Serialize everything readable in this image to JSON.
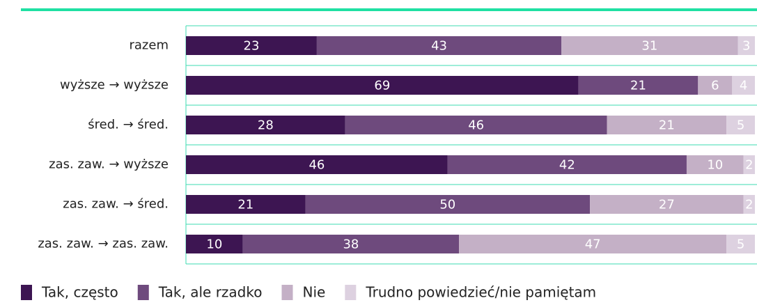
{
  "chart_data": {
    "type": "stacked_barh",
    "categories": [
      "razem",
      "wyższe → wyższe",
      "śred. → śred.",
      "zas. zaw. → wyższe",
      "zas. zaw. → śred.",
      "zas. zaw. → zas. zaw."
    ],
    "series": [
      {
        "name": "Tak, często",
        "color": "#3d1552",
        "values": [
          23,
          69,
          28,
          46,
          21,
          10
        ]
      },
      {
        "name": "Tak, ale rzadko",
        "color": "#6e4a7d",
        "values": [
          43,
          21,
          46,
          42,
          50,
          38
        ]
      },
      {
        "name": "Nie",
        "color": "#c4b0c6",
        "values": [
          31,
          6,
          21,
          10,
          27,
          47
        ]
      },
      {
        "name": "Trudno powiedzieć/nie pamiętam",
        "color": "#ddd1e0",
        "values": [
          3,
          4,
          5,
          2,
          2,
          5
        ]
      }
    ],
    "xlim": [
      0,
      100
    ]
  }
}
